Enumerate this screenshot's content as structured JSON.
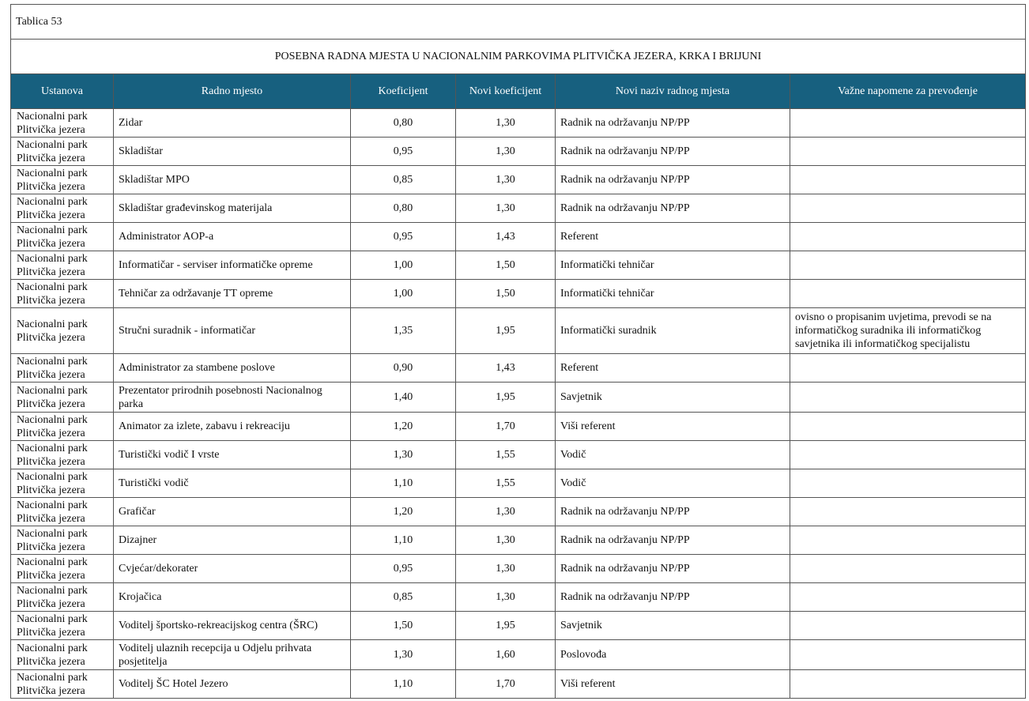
{
  "table": {
    "caption": "Tablica 53",
    "title": "POSEBNA RADNA MJESTA U NACIONALNIM PARKOVIMA PLITVIČKA JEZERA, KRKA I BRIJUNI",
    "headers": [
      "Ustanova",
      "Radno mjesto",
      "Koeficijent",
      "Novi koeficijent",
      "Novi naziv radnog mjesta",
      "Važne napomene za prevođenje"
    ],
    "rows": [
      {
        "ustanova": "Nacionalni park Plitvička jezera",
        "radno_mjesto": "Zidar",
        "koeficijent": "0,80",
        "novi_koeficijent": "1,30",
        "novi_naziv": "Radnik na održavanju NP/PP"
      },
      {
        "ustanova": "Nacionalni park Plitvička jezera",
        "radno_mjesto": "Skladištar",
        "koeficijent": "0,95",
        "novi_koeficijent": "1,30",
        "novi_naziv": "Radnik na održavanju NP/PP"
      },
      {
        "ustanova": "Nacionalni park Plitvička jezera",
        "radno_mjesto": "Skladištar MPO",
        "koeficijent": "0,85",
        "novi_koeficijent": "1,30",
        "novi_naziv": "Radnik na održavanju NP/PP"
      },
      {
        "ustanova": "Nacionalni park Plitvička jezera",
        "radno_mjesto": "Skladištar građevinskog materijala",
        "koeficijent": "0,80",
        "novi_koeficijent": "1,30",
        "novi_naziv": "Radnik na održavanju NP/PP"
      },
      {
        "ustanova": "Nacionalni park Plitvička jezera",
        "radno_mjesto": "Administrator AOP-a",
        "koeficijent": "0,95",
        "novi_koeficijent": "1,43",
        "novi_naziv": "Referent"
      },
      {
        "ustanova": "Nacionalni park Plitvička jezera",
        "radno_mjesto": "Informatičar - serviser informatičke opreme",
        "koeficijent": "1,00",
        "novi_koeficijent": "1,50",
        "novi_naziv": "Informatički tehničar"
      },
      {
        "ustanova": "Nacionalni park Plitvička jezera",
        "radno_mjesto": "Tehničar za održavanje TT opreme",
        "koeficijent": "1,00",
        "novi_koeficijent": "1,50",
        "novi_naziv": "Informatički tehničar"
      },
      {
        "ustanova": "Nacionalni park Plitvička jezera",
        "radno_mjesto": "Stručni suradnik - informatičar",
        "koeficijent": "1,35",
        "novi_koeficijent": "1,95",
        "novi_naziv": "Informatički suradnik",
        "napomena": "ovisno o propisanim uvjetima, prevodi se na informatičkog suradnika ili informatičkog savjetnika ili informatičkog  specijalistu"
      },
      {
        "ustanova": "Nacionalni park Plitvička jezera",
        "radno_mjesto": "Administrator za stambene poslove",
        "koeficijent": "0,90",
        "novi_koeficijent": "1,43",
        "novi_naziv": "Referent"
      },
      {
        "ustanova": "Nacionalni park Plitvička jezera",
        "radno_mjesto": "Prezentator prirodnih posebnosti Nacionalnog parka",
        "koeficijent": "1,40",
        "novi_koeficijent": "1,95",
        "novi_naziv": "Savjetnik"
      },
      {
        "ustanova": "Nacionalni park Plitvička jezera",
        "radno_mjesto": "Animator za izlete, zabavu i rekreaciju",
        "koeficijent": "1,20",
        "novi_koeficijent": "1,70",
        "novi_naziv": "Viši referent"
      },
      {
        "ustanova": "Nacionalni park Plitvička jezera",
        "radno_mjesto": "Turistički vodič I vrste",
        "koeficijent": "1,30",
        "novi_koeficijent": "1,55",
        "novi_naziv": "Vodič"
      },
      {
        "ustanova": "Nacionalni park Plitvička jezera",
        "radno_mjesto": "Turistički vodič",
        "koeficijent": "1,10",
        "novi_koeficijent": "1,55",
        "novi_naziv": "Vodič"
      },
      {
        "ustanova": "Nacionalni park Plitvička jezera",
        "radno_mjesto": "Grafičar",
        "koeficijent": "1,20",
        "novi_koeficijent": "1,30",
        "novi_naziv": "Radnik na održavanju NP/PP"
      },
      {
        "ustanova": "Nacionalni park Plitvička jezera",
        "radno_mjesto": "Dizajner",
        "koeficijent": "1,10",
        "novi_koeficijent": "1,30",
        "novi_naziv": "Radnik na održavanju NP/PP"
      },
      {
        "ustanova": "Nacionalni park Plitvička jezera",
        "radno_mjesto": "Cvjećar/dekorater",
        "koeficijent": "0,95",
        "novi_koeficijent": "1,30",
        "novi_naziv": "Radnik na održavanju NP/PP"
      },
      {
        "ustanova": "Nacionalni park Plitvička jezera",
        "radno_mjesto": "Krojačica",
        "koeficijent": "0,85",
        "novi_koeficijent": "1,30",
        "novi_naziv": "Radnik na održavanju NP/PP"
      },
      {
        "ustanova": "Nacionalni park Plitvička jezera",
        "radno_mjesto": "Voditelj športsko-rekreacijskog centra (ŠRC)",
        "koeficijent": "1,50",
        "novi_koeficijent": "1,95",
        "novi_naziv": "Savjetnik"
      },
      {
        "ustanova": "Nacionalni park Plitvička jezera",
        "radno_mjesto": "Voditelj ulaznih recepcija u Odjelu prihvata posjetitelja",
        "koeficijent": "1,30",
        "novi_koeficijent": "1,60",
        "novi_naziv": "Poslovođa"
      },
      {
        "ustanova": "Nacionalni park Plitvička jezera",
        "radno_mjesto": "Voditelj ŠC Hotel Jezero",
        "koeficijent": "1,10",
        "novi_koeficijent": "1,70",
        "novi_naziv": "Viši referent"
      }
    ]
  }
}
